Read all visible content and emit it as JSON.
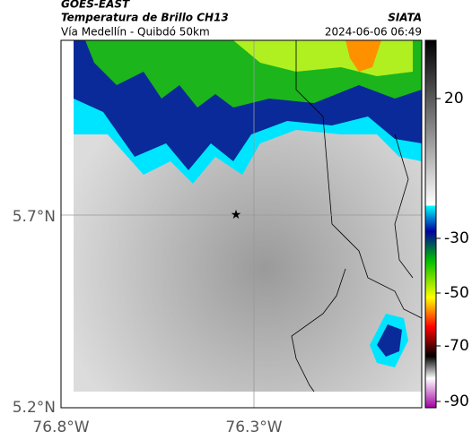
{
  "header": {
    "source": "GOES-EAST",
    "title": "Temperatura de Brillo CH13",
    "org": "SIATA",
    "subtitle": "Vía Medellín - Quibdó 50km",
    "timestamp": "2024-06-06 06:49"
  },
  "map": {
    "lat_ticks": [
      "5.7°N",
      "5.2°N"
    ],
    "lon_ticks": [
      "76.8°W",
      "76.3°W"
    ]
  },
  "colorbar": {
    "ticks": [
      "20",
      "-30",
      "-50",
      "-70",
      "-90"
    ]
  }
}
